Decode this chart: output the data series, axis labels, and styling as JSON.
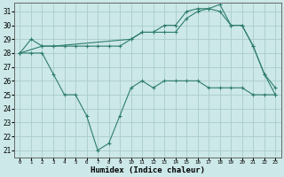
{
  "title": "",
  "xlabel": "Humidex (Indice chaleur)",
  "bg_color": "#cce8e8",
  "grid_color": "#aacccc",
  "line_color": "#2e7d6e",
  "xlim": [
    -0.5,
    23.5
  ],
  "ylim": [
    20.5,
    31.6
  ],
  "yticks": [
    21,
    22,
    23,
    24,
    25,
    26,
    27,
    28,
    29,
    30,
    31
  ],
  "xticks": [
    0,
    1,
    2,
    3,
    4,
    5,
    6,
    7,
    8,
    9,
    10,
    11,
    12,
    13,
    14,
    15,
    16,
    17,
    18,
    19,
    20,
    21,
    22,
    23
  ],
  "line1_x": [
    0,
    1,
    2,
    3,
    4,
    5,
    6,
    7,
    8,
    9,
    10,
    11,
    12,
    13,
    14,
    15,
    16,
    17,
    18,
    19,
    20,
    21,
    22,
    23
  ],
  "line1_y": [
    28,
    29,
    28.5,
    28.5,
    28.5,
    28.5,
    28.5,
    28.5,
    28.5,
    28.5,
    29,
    29.5,
    29.5,
    30,
    30,
    31,
    31.2,
    31.2,
    31.5,
    30,
    30,
    28.5,
    26.5,
    25
  ],
  "line2_x": [
    0,
    2,
    3,
    10,
    11,
    12,
    13,
    14,
    15,
    16,
    17,
    18,
    19,
    20,
    21,
    22,
    23
  ],
  "line2_y": [
    28,
    28.5,
    28.5,
    29,
    29.5,
    29.5,
    29.5,
    29.5,
    30.5,
    31,
    31.2,
    31,
    30,
    30,
    28.5,
    26.5,
    25.5
  ],
  "line3_x": [
    0,
    1,
    2,
    3,
    4,
    5,
    6,
    7,
    8,
    9,
    10,
    11,
    12,
    13,
    14,
    15,
    16,
    17,
    18,
    19,
    20,
    21,
    22,
    23
  ],
  "line3_y": [
    28,
    28,
    28,
    26.5,
    25,
    25,
    23.5,
    21,
    21.5,
    23.5,
    25.5,
    26,
    25.5,
    26,
    26,
    26,
    26,
    25.5,
    25.5,
    25.5,
    25.5,
    25,
    25,
    25
  ]
}
